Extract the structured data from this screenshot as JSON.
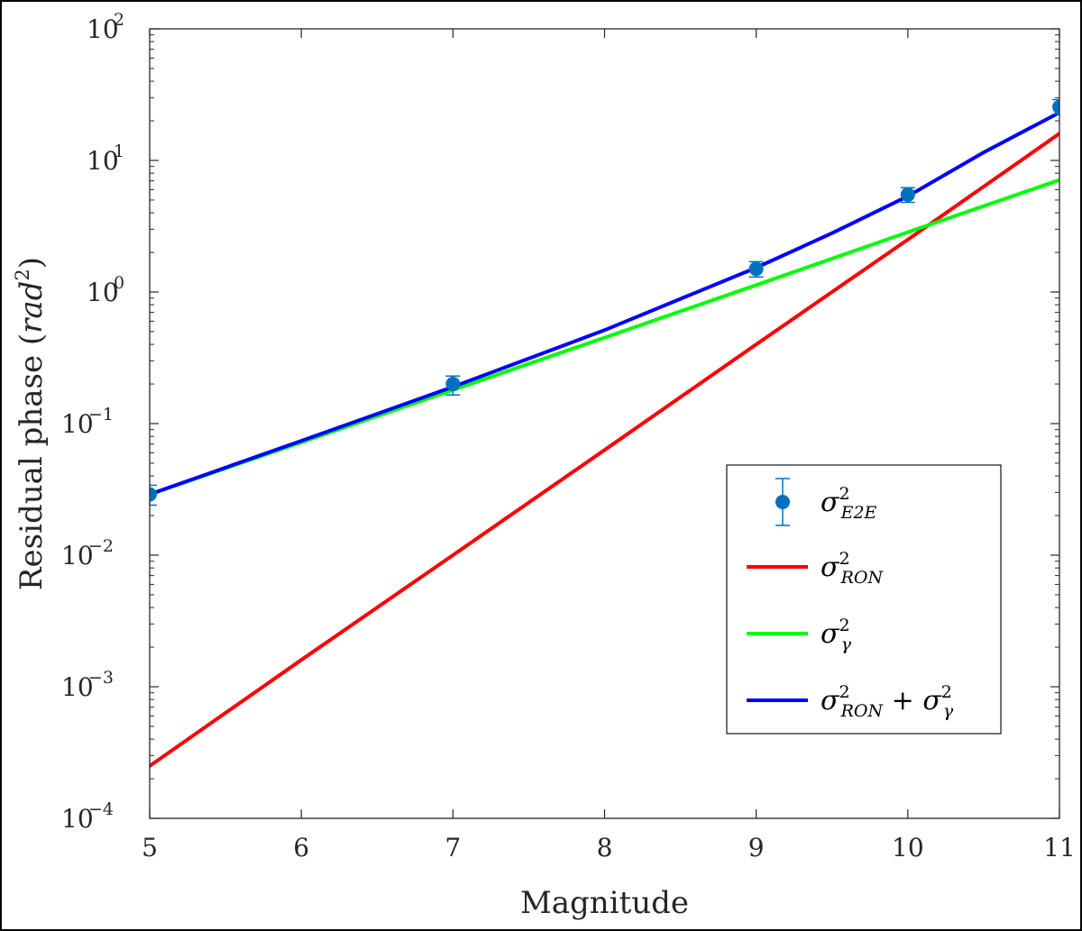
{
  "chart_data": {
    "type": "line",
    "xscale": "linear",
    "yscale": "log",
    "xlim": [
      5,
      11
    ],
    "ylim": [
      0.0001,
      100
    ],
    "xticks": [
      5,
      6,
      7,
      8,
      9,
      10,
      11
    ],
    "xtick_labels": [
      "5",
      "6",
      "7",
      "8",
      "9",
      "10",
      "11"
    ],
    "ytick_labels": [
      {
        "value": 0.0001,
        "base": "10",
        "exp": "−4"
      },
      {
        "value": 0.001,
        "base": "10",
        "exp": "−3"
      },
      {
        "value": 0.01,
        "base": "10",
        "exp": "−2"
      },
      {
        "value": 0.1,
        "base": "10",
        "exp": "−1"
      },
      {
        "value": 1,
        "base": "10",
        "exp": "0"
      },
      {
        "value": 10,
        "base": "10",
        "exp": "1"
      },
      {
        "value": 100,
        "base": "10",
        "exp": "2"
      }
    ],
    "xlabel": "Magnitude",
    "ylabel": {
      "main": "Residual phase (",
      "unit": "rad",
      "exp": "2",
      "close": ")"
    },
    "legend_position": "lower-right",
    "series": [
      {
        "name": "σ²_E2E",
        "kind": "errorbar",
        "color": "#0072BD",
        "x": [
          5,
          7,
          9,
          10,
          11
        ],
        "y": [
          0.029,
          0.2,
          1.5,
          5.5,
          25.5
        ],
        "yerr_low": [
          0.005,
          0.035,
          0.2,
          0.7,
          3.0
        ],
        "yerr_high": [
          0.005,
          0.03,
          0.2,
          0.7,
          3.5
        ]
      },
      {
        "name": "σ²_RON",
        "kind": "line",
        "color": "#FF0000",
        "x": [
          5,
          6,
          7,
          8,
          9,
          10,
          11
        ],
        "y": [
          0.00025,
          0.0016,
          0.01,
          0.063,
          0.4,
          2.5,
          16
        ]
      },
      {
        "name": "σ²_γ",
        "kind": "line",
        "color": "#00FF00",
        "x": [
          5,
          6,
          7,
          8,
          9,
          10,
          11
        ],
        "y": [
          0.029,
          0.072,
          0.18,
          0.45,
          1.13,
          2.85,
          7.1
        ]
      },
      {
        "name": "σ²_RON + σ²_γ",
        "kind": "line",
        "color": "#0000FF",
        "x": [
          5,
          6,
          7,
          8,
          9,
          9.5,
          10,
          10.5,
          11
        ],
        "y": [
          0.029,
          0.074,
          0.19,
          0.513,
          1.53,
          2.8,
          5.35,
          11.5,
          23.1
        ]
      }
    ],
    "legend": [
      {
        "symbol": "σ",
        "sup": "2",
        "sub": "E2E"
      },
      {
        "symbol": "σ",
        "sup": "2",
        "sub": "RON"
      },
      {
        "symbol": "σ",
        "sup": "2",
        "sub": "γ"
      },
      {
        "symbol": "σ",
        "sup": "2",
        "sub": "RON",
        "plus": "+",
        "symbol2": "σ",
        "sup2": "2",
        "sub2": "γ"
      }
    ]
  }
}
